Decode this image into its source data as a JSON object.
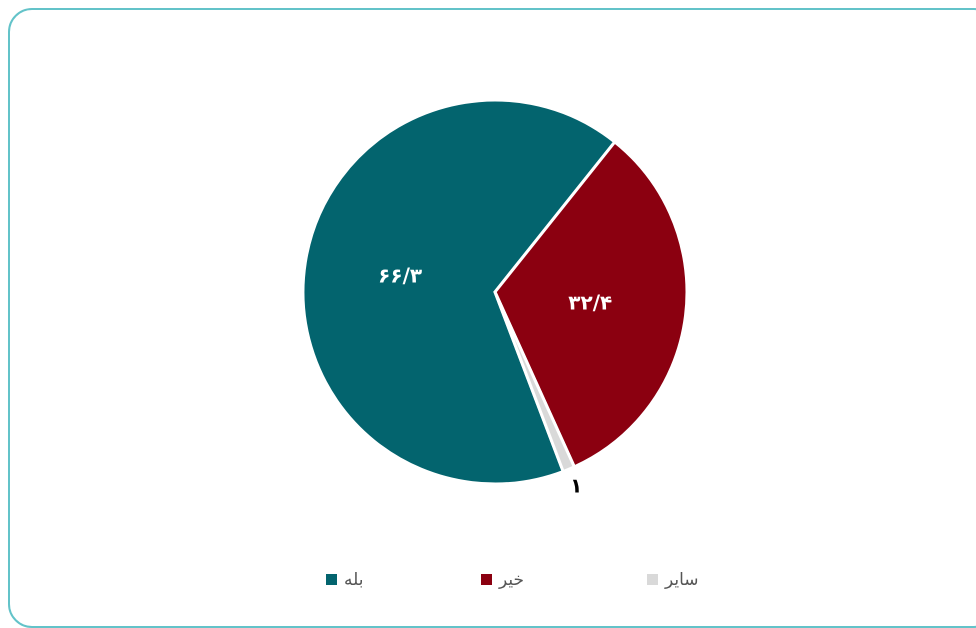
{
  "chart_data": {
    "type": "pie",
    "categories": [
      "بله",
      "خیر",
      "سایر"
    ],
    "values": [
      66.3,
      32.4,
      1
    ],
    "value_labels": [
      "۶۶/۳",
      "۳۲/۴",
      "۱"
    ],
    "colors": [
      "#03646e",
      "#8b0010",
      "#d9d9d9"
    ],
    "legend": "bottom"
  }
}
